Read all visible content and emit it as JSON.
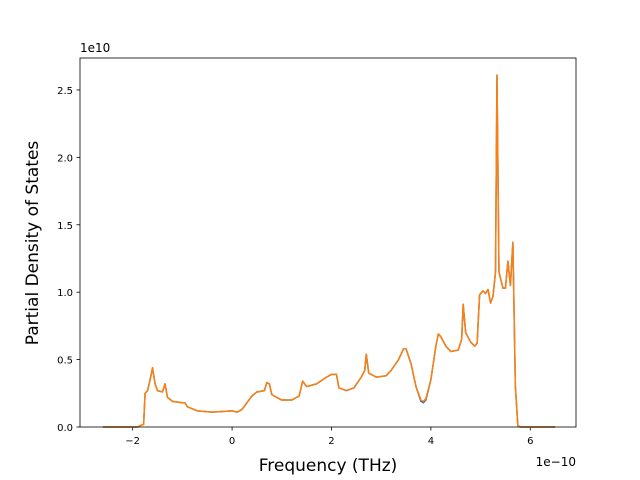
{
  "chart_data": {
    "type": "line",
    "xlabel": "Frequency (THz)",
    "ylabel": "Partial Density of States",
    "x_offset_label": "1e−10",
    "y_offset_label": "1e10",
    "x": [
      -2.6,
      -1.9,
      -1.85,
      -1.78,
      -1.75,
      -1.7,
      -1.65,
      -1.6,
      -1.55,
      -1.5,
      -1.4,
      -1.35,
      -1.3,
      -1.2,
      -1.0,
      -0.95,
      -0.9,
      -0.7,
      -0.4,
      0,
      0.1,
      0.2,
      0.4,
      0.5,
      0.65,
      0.7,
      0.75,
      0.8,
      1.0,
      1.2,
      1.35,
      1.42,
      1.5,
      1.7,
      1.9,
      2.0,
      2.1,
      2.15,
      2.3,
      2.45,
      2.6,
      2.67,
      2.7,
      2.75,
      2.9,
      3.1,
      3.2,
      3.35,
      3.45,
      3.5,
      3.6,
      3.7,
      3.8,
      3.85,
      3.9,
      4.0,
      4.1,
      4.15,
      4.2,
      4.3,
      4.4,
      4.55,
      4.62,
      4.65,
      4.7,
      4.8,
      4.88,
      4.93,
      4.98,
      5.05,
      5.1,
      5.15,
      5.2,
      5.25,
      5.3,
      5.33,
      5.37,
      5.45,
      5.5,
      5.55,
      5.6,
      5.65,
      5.7,
      5.75,
      5.8,
      6.5
    ],
    "series": [
      {
        "color": "#1f77b4",
        "values": [
          0,
          0,
          0.01,
          0.02,
          0.25,
          0.27,
          0.35,
          0.44,
          0.32,
          0.27,
          0.26,
          0.32,
          0.22,
          0.19,
          0.18,
          0.18,
          0.15,
          0.12,
          0.11,
          0.12,
          0.11,
          0.13,
          0.23,
          0.26,
          0.27,
          0.33,
          0.32,
          0.24,
          0.2,
          0.2,
          0.23,
          0.34,
          0.3,
          0.32,
          0.37,
          0.39,
          0.39,
          0.29,
          0.27,
          0.29,
          0.37,
          0.42,
          0.54,
          0.4,
          0.37,
          0.38,
          0.42,
          0.5,
          0.58,
          0.58,
          0.47,
          0.3,
          0.19,
          0.18,
          0.2,
          0.35,
          0.6,
          0.69,
          0.67,
          0.6,
          0.56,
          0.57,
          0.65,
          0.91,
          0.7,
          0.63,
          0.6,
          0.62,
          0.98,
          1.01,
          0.99,
          1.02,
          0.92,
          0.97,
          1.15,
          2.61,
          1.15,
          1.03,
          1.03,
          1.23,
          1.05,
          1.37,
          0.3,
          0.01,
          0,
          0
        ]
      },
      {
        "color": "#ff7f0e",
        "values": [
          0,
          0,
          0.01,
          0.02,
          0.25,
          0.27,
          0.35,
          0.44,
          0.32,
          0.27,
          0.26,
          0.32,
          0.22,
          0.19,
          0.18,
          0.18,
          0.15,
          0.12,
          0.11,
          0.12,
          0.11,
          0.13,
          0.23,
          0.26,
          0.27,
          0.33,
          0.32,
          0.24,
          0.2,
          0.2,
          0.23,
          0.34,
          0.3,
          0.32,
          0.37,
          0.39,
          0.39,
          0.29,
          0.27,
          0.29,
          0.37,
          0.42,
          0.54,
          0.4,
          0.37,
          0.38,
          0.42,
          0.5,
          0.58,
          0.58,
          0.47,
          0.3,
          0.2,
          0.19,
          0.21,
          0.35,
          0.6,
          0.69,
          0.67,
          0.6,
          0.56,
          0.57,
          0.65,
          0.91,
          0.7,
          0.63,
          0.6,
          0.62,
          0.98,
          1.01,
          0.99,
          1.02,
          0.92,
          0.97,
          1.15,
          2.61,
          1.15,
          1.03,
          1.03,
          1.23,
          1.05,
          1.37,
          0.3,
          0.01,
          0,
          0
        ]
      }
    ],
    "xlim": [
      -3.06,
      6.92
    ],
    "ylim": [
      0,
      2.737
    ],
    "xticks": [
      {
        "value": -2,
        "label": "−2"
      },
      0,
      2,
      4,
      6
    ],
    "yticks": [
      {
        "value": 0,
        "label": "0.0"
      },
      {
        "value": 0.5,
        "label": "0.5"
      },
      {
        "value": 1,
        "label": "1.0"
      },
      {
        "value": 1.5,
        "label": "1.5"
      },
      {
        "value": 2,
        "label": "2.0"
      },
      {
        "value": 2.5,
        "label": "2.5"
      }
    ],
    "grid": false
  }
}
